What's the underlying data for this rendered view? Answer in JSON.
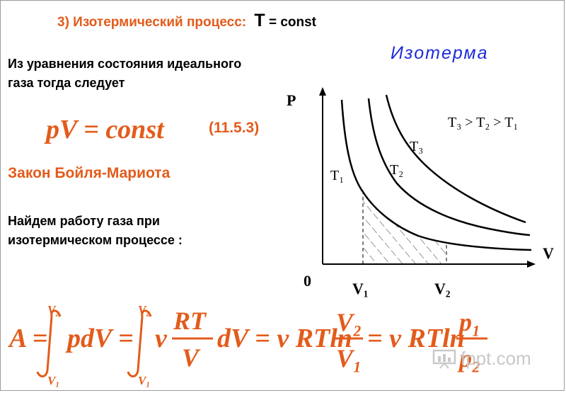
{
  "title": {
    "label": "3) Изотермический процесс:",
    "symbol": "T",
    "rest": "= const"
  },
  "graph_title": "Изотерма",
  "intro": {
    "line1": "Из уравнения состояния идеального",
    "line2": "газа тогда следует"
  },
  "equation": {
    "text": "pV = const",
    "number": "(11.5.3)"
  },
  "law_name": "Закон Бойля-Мариота",
  "work": {
    "line1": "Найдем работу газа при",
    "line2": "изотермическом процессе :"
  },
  "graph": {
    "axis_y": "P",
    "axis_x": "V",
    "origin": "0",
    "inequality": "T₃ > T₂ > T₁",
    "curves": [
      "T₁",
      "T₂",
      "T₃"
    ],
    "x_ticks": [
      "V₁",
      "V₂"
    ]
  },
  "formula": {
    "lhs": "A =",
    "int1_upper": "V₂",
    "int1_lower": "V₁",
    "term1": "pdV =",
    "int2_upper": "V₂",
    "int2_lower": "V₁",
    "nu": "ν",
    "frac1_num": "RT",
    "frac1_den": "V",
    "term2": "dV = ν RTln",
    "frac2_num": "V₂",
    "frac2_den": "V₁",
    "term3": "= ν RTln",
    "frac3_num": "p₁",
    "frac3_den": "p₂"
  },
  "watermark": "fppt.com",
  "colors": {
    "accent": "#e35b1b",
    "blue": "#1b2bd9",
    "text": "#000000"
  }
}
